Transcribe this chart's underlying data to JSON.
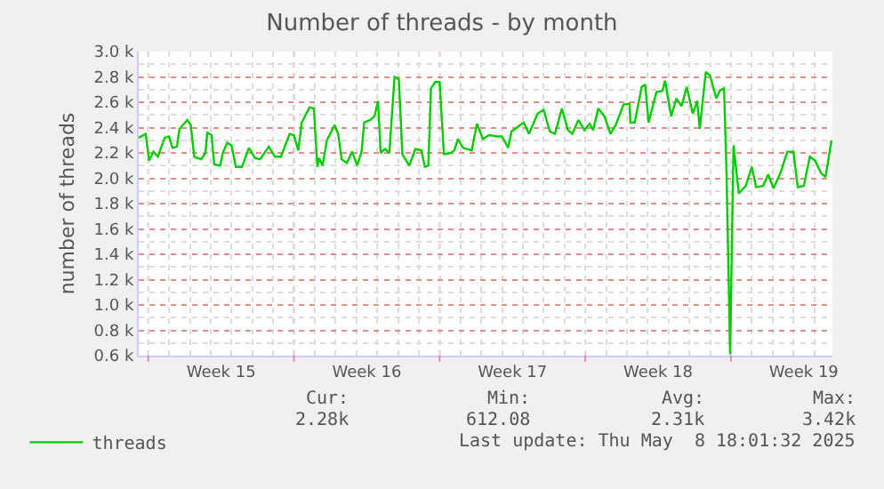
{
  "chart_data": {
    "type": "line",
    "title": "Number of threads - by month",
    "ylabel": "number of threads",
    "x": [
      "2025-04-06T13:00",
      "2025-04-06T21:00",
      "2025-04-07T01:00",
      "2025-04-07T06:00",
      "2025-04-07T11:00",
      "2025-04-07T19:00",
      "2025-04-08T00:00",
      "2025-04-08T04:00",
      "2025-04-08T09:00",
      "2025-04-08T12:00",
      "2025-04-08T21:00",
      "2025-04-09T01:00",
      "2025-04-09T05:00",
      "2025-04-09T13:00",
      "2025-04-09T18:00",
      "2025-04-09T20:00",
      "2025-04-10T01:00",
      "2025-04-10T04:00",
      "2025-04-10T11:00",
      "2025-04-10T14:00",
      "2025-04-10T19:00",
      "2025-04-11T00:00",
      "2025-04-11T05:00",
      "2025-04-11T12:00",
      "2025-04-11T20:00",
      "2025-04-12T03:00",
      "2025-04-12T09:00",
      "2025-04-12T19:00",
      "2025-04-13T02:00",
      "2025-04-13T09:00",
      "2025-04-13T19:00",
      "2025-04-14T00:00",
      "2025-04-14T05:00",
      "2025-04-14T09:00",
      "2025-04-14T18:00",
      "2025-04-14T23:00",
      "2025-04-15T03:00",
      "2025-04-15T05:00",
      "2025-04-15T09:00",
      "2025-04-15T14:00",
      "2025-04-15T23:00",
      "2025-04-16T03:00",
      "2025-04-16T07:00",
      "2025-04-16T13:00",
      "2025-04-16T19:00",
      "2025-04-17T01:00",
      "2025-04-17T06:00",
      "2025-04-17T09:00",
      "2025-04-17T16:00",
      "2025-04-17T21:00",
      "2025-04-18T01:00",
      "2025-04-18T04:00",
      "2025-04-18T09:00",
      "2025-04-18T14:00",
      "2025-04-18T20:00",
      "2025-04-19T01:00",
      "2025-04-19T05:00",
      "2025-04-19T13:00",
      "2025-04-19T20:00",
      "2025-04-20T03:00",
      "2025-04-20T07:00",
      "2025-04-20T11:00",
      "2025-04-20T14:00",
      "2025-04-20T19:00",
      "2025-04-21T00:00",
      "2025-04-21T05:00",
      "2025-04-21T13:00",
      "2025-04-21T17:00",
      "2025-04-21T21:00",
      "2025-04-22T03:00",
      "2025-04-22T13:00",
      "2025-04-22T19:00",
      "2025-04-23T02:00",
      "2025-04-23T09:00",
      "2025-04-23T19:00",
      "2025-04-24T00:00",
      "2025-04-24T07:00",
      "2025-04-24T11:00",
      "2025-04-25T01:00",
      "2025-04-25T07:00",
      "2025-04-25T17:00",
      "2025-04-26T00:00",
      "2025-04-26T07:00",
      "2025-04-26T13:00",
      "2025-04-26T21:00",
      "2025-04-27T04:00",
      "2025-04-27T09:00",
      "2025-04-27T16:00",
      "2025-04-27T23:00",
      "2025-04-28T05:00",
      "2025-04-28T09:00",
      "2025-04-28T15:00",
      "2025-04-28T22:00",
      "2025-04-29T05:00",
      "2025-04-29T11:00",
      "2025-04-29T20:00",
      "2025-04-30T03:00",
      "2025-04-30T04:00",
      "2025-04-30T09:00",
      "2025-04-30T17:00",
      "2025-04-30T21:00",
      "2025-05-01T01:00",
      "2025-05-01T10:00",
      "2025-05-01T17:00",
      "2025-05-01T20:00",
      "2025-05-02T03:00",
      "2025-05-02T09:00",
      "2025-05-02T15:00",
      "2025-05-02T21:00",
      "2025-05-03T04:00",
      "2025-05-03T09:00",
      "2025-05-03T12:00",
      "2025-05-03T19:00",
      "2025-05-04T00:00",
      "2025-05-04T07:00",
      "2025-05-04T11:00",
      "2025-05-04T16:00",
      "2025-05-04T19:00",
      "2025-05-04T23:00",
      "2025-05-05T03:00",
      "2025-05-05T09:00",
      "2025-05-05T17:00",
      "2025-05-06T00:00",
      "2025-05-06T05:00",
      "2025-05-06T13:00",
      "2025-05-06T19:00",
      "2025-05-07T01:00",
      "2025-05-07T09:00",
      "2025-05-07T17:00",
      "2025-05-08T00:00",
      "2025-05-08T05:00",
      "2025-05-08T12:00",
      "2025-05-08T19:00",
      "2025-05-09T01:00",
      "2025-05-09T08:00",
      "2025-05-09T13:00",
      "2025-05-09T20:00"
    ],
    "series": [
      {
        "name": "threads",
        "color": "#00cc00",
        "values": [
          2.32,
          2.35,
          2.14,
          2.21,
          2.17,
          2.32,
          2.33,
          2.24,
          2.25,
          2.39,
          2.46,
          2.42,
          2.17,
          2.15,
          2.2,
          2.36,
          2.34,
          2.11,
          2.1,
          2.2,
          2.28,
          2.26,
          2.09,
          2.09,
          2.24,
          2.16,
          2.15,
          2.25,
          2.17,
          2.17,
          2.35,
          2.34,
          2.22,
          2.44,
          2.56,
          2.55,
          2.09,
          2.16,
          2.1,
          2.3,
          2.42,
          2.35,
          2.15,
          2.12,
          2.21,
          2.1,
          2.21,
          2.44,
          2.46,
          2.49,
          2.61,
          2.2,
          2.23,
          2.2,
          2.8,
          2.78,
          2.19,
          2.1,
          2.23,
          2.22,
          2.09,
          2.1,
          2.71,
          2.76,
          2.76,
          2.19,
          2.2,
          2.22,
          2.31,
          2.24,
          2.22,
          2.43,
          2.31,
          2.34,
          2.33,
          2.33,
          2.24,
          2.37,
          2.44,
          2.35,
          2.51,
          2.54,
          2.37,
          2.35,
          2.55,
          2.38,
          2.35,
          2.46,
          2.38,
          2.43,
          2.38,
          2.55,
          2.49,
          2.35,
          2.42,
          2.58,
          2.59,
          2.44,
          2.44,
          2.72,
          2.74,
          2.44,
          2.68,
          2.69,
          2.77,
          2.49,
          2.63,
          2.57,
          2.72,
          2.51,
          2.61,
          2.39,
          2.84,
          2.81,
          2.63,
          2.69,
          2.71,
          2.02,
          0.61,
          2.26,
          1.88,
          1.94,
          2.09,
          1.93,
          1.94,
          2.03,
          1.92,
          2.04,
          2.21,
          2.21,
          1.93,
          1.94,
          2.17,
          2.14,
          2.04,
          2.01,
          2.3
        ]
      }
    ],
    "xlim": [
      "2025-04-06T13:00",
      "2025-05-09T21:00"
    ],
    "xticks": [
      {
        "value": "2025-04-07",
        "label": null
      },
      {
        "value": "2025-04-10T12:00",
        "label": "Week 15"
      },
      {
        "value": "2025-04-14",
        "label": null
      },
      {
        "value": "2025-04-17T12:00",
        "label": "Week 16"
      },
      {
        "value": "2025-04-21",
        "label": null
      },
      {
        "value": "2025-04-24T12:00",
        "label": "Week 17"
      },
      {
        "value": "2025-04-28",
        "label": null
      },
      {
        "value": "2025-05-01T12:00",
        "label": "Week 18"
      },
      {
        "value": "2025-05-05",
        "label": null
      },
      {
        "value": "2025-05-08T12:00",
        "label": "Week 19"
      }
    ],
    "ylim": [
      0.6,
      3.0
    ],
    "yticks": [
      {
        "value": 0.6,
        "label": "0.6 k"
      },
      {
        "value": 0.8,
        "label": "0.8 k"
      },
      {
        "value": 1.0,
        "label": "1.0 k"
      },
      {
        "value": 1.2,
        "label": "1.2 k"
      },
      {
        "value": 1.4,
        "label": "1.4 k"
      },
      {
        "value": 1.6,
        "label": "1.6 k"
      },
      {
        "value": 1.8,
        "label": "1.8 k"
      },
      {
        "value": 2.0,
        "label": "2.0 k"
      },
      {
        "value": 2.2,
        "label": "2.2 k"
      },
      {
        "value": 2.4,
        "label": "2.4 k"
      },
      {
        "value": 2.6,
        "label": "2.6 k"
      },
      {
        "value": 2.8,
        "label": "2.8 k"
      },
      {
        "value": 3.0,
        "label": "3.0 k"
      }
    ],
    "grid": true,
    "legend": "bottom left",
    "marker": "none",
    "line_style": "solid",
    "annotations": [
      "Cur:",
      "Min:",
      "Avg:",
      "Max:",
      "2.28k",
      "612.08",
      "2.31k",
      "3.42k",
      "Last update: Thu May  8 18:01:32 2025"
    ]
  }
}
